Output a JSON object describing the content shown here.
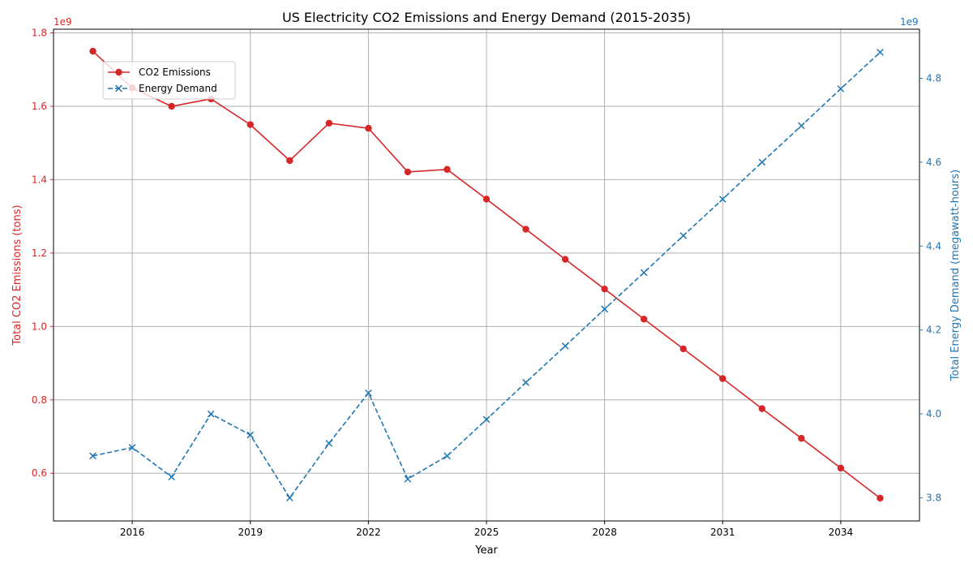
{
  "chart_data": {
    "type": "line",
    "title": "US Electricity CO2 Emissions and Energy Demand (2015-2035)",
    "xlabel": "Year",
    "ylabel_left": "Total CO2 Emissions (tons)",
    "ylabel_right": "Total Energy Demand (megawatt-hours)",
    "left_offset_label": "1e9",
    "right_offset_label": "1e9",
    "x": [
      2015,
      2016,
      2017,
      2018,
      2019,
      2020,
      2021,
      2022,
      2023,
      2024,
      2025,
      2026,
      2027,
      2028,
      2029,
      2030,
      2031,
      2032,
      2033,
      2034,
      2035
    ],
    "x_ticks": [
      2016,
      2019,
      2022,
      2025,
      2028,
      2031,
      2034
    ],
    "x_tick_labels": [
      "2016",
      "2019",
      "2022",
      "2025",
      "2028",
      "2031",
      "2034"
    ],
    "xlim": [
      2014,
      2036
    ],
    "ylim_left": [
      0.47,
      1.81
    ],
    "yticks_left": [
      0.6,
      0.8,
      1.0,
      1.2,
      1.4,
      1.6,
      1.8
    ],
    "ytick_labels_left": [
      "0.6",
      "0.8",
      "1.0",
      "1.2",
      "1.4",
      "1.6",
      "1.8"
    ],
    "ylim_right": [
      3.745,
      4.917
    ],
    "yticks_right": [
      3.8,
      4.0,
      4.2,
      4.4,
      4.6,
      4.8
    ],
    "ytick_labels_right": [
      "3.8",
      "4.0",
      "4.2",
      "4.4",
      "4.6",
      "4.8"
    ],
    "grid": true,
    "legend_position": "top-left",
    "series": [
      {
        "name": "CO2 Emissions",
        "axis": "left",
        "color": "#d62728",
        "marker": "circle",
        "linestyle": "solid",
        "values": [
          1.75,
          1.65,
          1.6,
          1.62,
          1.55,
          1.452,
          1.554,
          1.54,
          1.421,
          1.428,
          1.347,
          1.265,
          1.183,
          1.102,
          1.02,
          0.939,
          0.858,
          0.776,
          0.695,
          0.614,
          0.532
        ]
      },
      {
        "name": "Energy Demand",
        "axis": "right",
        "color": "#1f77b4",
        "marker": "x",
        "linestyle": "dashed",
        "values": [
          3.9,
          3.92,
          3.85,
          4.0,
          3.95,
          3.8,
          3.93,
          4.05,
          3.845,
          3.9,
          3.987,
          4.075,
          4.162,
          4.25,
          4.337,
          4.425,
          4.512,
          4.6,
          4.687,
          4.775,
          4.862
        ]
      }
    ]
  }
}
